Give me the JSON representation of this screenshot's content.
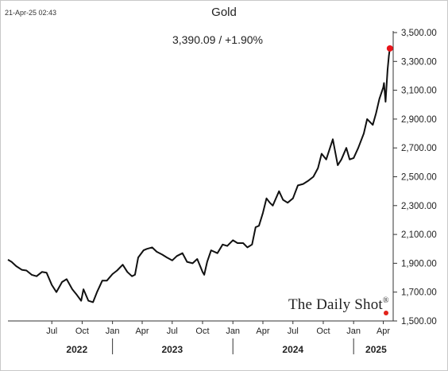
{
  "header": {
    "timestamp": "21-Apr-25 02:43",
    "title": "Gold",
    "subtitle": "3,390.09  /  +1.90%"
  },
  "watermark": {
    "text": "The Daily Shot",
    "mark": "®"
  },
  "colors": {
    "line": "#111111",
    "last_point": "#e8141a",
    "axis": "#333333"
  },
  "chart_data": {
    "type": "line",
    "title": "Gold",
    "xlabel": "",
    "ylabel": "",
    "ylim": [
      1500,
      3500
    ],
    "xlim": [
      "2022-02-18",
      "2025-05-01"
    ],
    "grid": false,
    "y_ticks": [
      1500,
      1700,
      1900,
      2100,
      2300,
      2500,
      2700,
      2900,
      3100,
      3300,
      3500
    ],
    "y_tick_labels": [
      "1,500.00",
      "1,700.00",
      "1,900.00",
      "2,100.00",
      "2,300.00",
      "2,500.00",
      "2,700.00",
      "2,900.00",
      "3,100.00",
      "3,300.00",
      "3,500.00"
    ],
    "x_month_ticks": [
      {
        "date": "2022-07-01",
        "label": "Jul"
      },
      {
        "date": "2022-10-01",
        "label": "Oct"
      },
      {
        "date": "2023-01-01",
        "label": "Jan"
      },
      {
        "date": "2023-04-01",
        "label": "Apr"
      },
      {
        "date": "2023-07-01",
        "label": "Jul"
      },
      {
        "date": "2023-10-01",
        "label": "Oct"
      },
      {
        "date": "2024-01-01",
        "label": "Jan"
      },
      {
        "date": "2024-04-01",
        "label": "Apr"
      },
      {
        "date": "2024-07-01",
        "label": "Jul"
      },
      {
        "date": "2024-10-01",
        "label": "Oct"
      },
      {
        "date": "2025-01-01",
        "label": "Jan"
      },
      {
        "date": "2025-04-01",
        "label": "Apr"
      }
    ],
    "x_year_labels": [
      {
        "label": "2022",
        "date": "2022-09-15"
      },
      {
        "label": "2023",
        "date": "2023-07-01"
      },
      {
        "label": "2024",
        "date": "2024-07-01"
      },
      {
        "label": "2025",
        "date": "2025-03-10"
      }
    ],
    "x_year_separators": [
      "2023-01-01",
      "2024-01-01",
      "2025-01-01"
    ],
    "series": [
      {
        "x": [
          "2022-02-18",
          "2022-03-01",
          "2022-03-15",
          "2022-04-01",
          "2022-04-15",
          "2022-05-01",
          "2022-05-16",
          "2022-06-01",
          "2022-06-15",
          "2022-07-01",
          "2022-07-15",
          "2022-08-01",
          "2022-08-15",
          "2022-09-01",
          "2022-09-15",
          "2022-09-28",
          "2022-10-05",
          "2022-10-20",
          "2022-11-03",
          "2022-11-15",
          "2022-12-01",
          "2022-12-15",
          "2023-01-01",
          "2023-01-15",
          "2023-02-01",
          "2023-02-15",
          "2023-03-01",
          "2023-03-10",
          "2023-03-20",
          "2023-04-05",
          "2023-04-15",
          "2023-05-01",
          "2023-05-15",
          "2023-06-01",
          "2023-06-15",
          "2023-07-01",
          "2023-07-15",
          "2023-08-01",
          "2023-08-15",
          "2023-09-01",
          "2023-09-15",
          "2023-10-01",
          "2023-10-06",
          "2023-10-15",
          "2023-10-27",
          "2023-11-15",
          "2023-12-01",
          "2023-12-15",
          "2024-01-01",
          "2024-01-15",
          "2024-02-01",
          "2024-02-14",
          "2024-02-28",
          "2024-03-10",
          "2024-03-20",
          "2024-04-01",
          "2024-04-12",
          "2024-04-22",
          "2024-05-01",
          "2024-05-20",
          "2024-06-01",
          "2024-06-15",
          "2024-07-01",
          "2024-07-16",
          "2024-08-01",
          "2024-08-15",
          "2024-09-01",
          "2024-09-15",
          "2024-09-26",
          "2024-10-10",
          "2024-10-30",
          "2024-11-14",
          "2024-11-25",
          "2024-12-10",
          "2024-12-20",
          "2025-01-01",
          "2025-01-15",
          "2025-02-01",
          "2025-02-11",
          "2025-02-28",
          "2025-03-10",
          "2025-03-20",
          "2025-04-01",
          "2025-04-03",
          "2025-04-08",
          "2025-04-10",
          "2025-04-14",
          "2025-04-18",
          "2025-04-21"
        ],
        "values": [
          1925,
          1910,
          1880,
          1855,
          1850,
          1820,
          1810,
          1840,
          1835,
          1750,
          1700,
          1770,
          1790,
          1720,
          1680,
          1640,
          1720,
          1640,
          1630,
          1700,
          1780,
          1780,
          1825,
          1850,
          1890,
          1840,
          1810,
          1820,
          1940,
          1990,
          2000,
          2010,
          1980,
          1960,
          1940,
          1920,
          1950,
          1970,
          1910,
          1900,
          1930,
          1840,
          1820,
          1910,
          1990,
          1970,
          2030,
          2020,
          2060,
          2040,
          2040,
          2010,
          2030,
          2150,
          2160,
          2250,
          2350,
          2320,
          2300,
          2400,
          2340,
          2320,
          2350,
          2440,
          2450,
          2470,
          2500,
          2560,
          2660,
          2620,
          2760,
          2580,
          2620,
          2700,
          2620,
          2630,
          2700,
          2800,
          2900,
          2860,
          2940,
          3040,
          3120,
          3150,
          3020,
          3100,
          3240,
          3340,
          3390
        ]
      }
    ],
    "last_value": 3390.09,
    "change_pct": "+1.90%"
  }
}
